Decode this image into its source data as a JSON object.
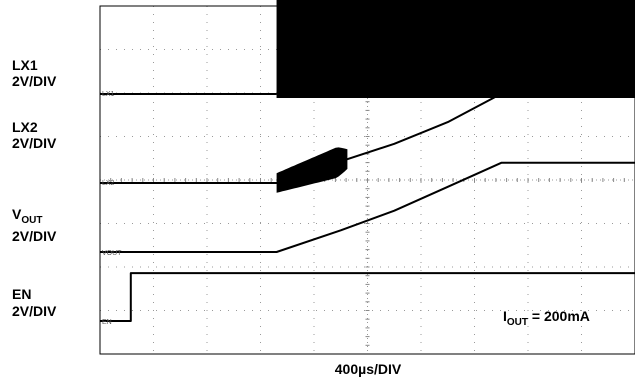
{
  "chart_data": {
    "type": "line",
    "title": "",
    "xlabel": "400µs/DIV",
    "x_unit": "µs",
    "x_per_div": 400,
    "x_divisions": 10,
    "y_divisions": 8,
    "xlim": [
      0,
      4000
    ],
    "grid": true,
    "annotation": {
      "main": "I",
      "sub": "OUT",
      "rest": " = 200mA"
    },
    "series": [
      {
        "name": "LX1",
        "scale": "2V/DIV",
        "marker": "LX1",
        "style": "switching_burst",
        "x": [
          0,
          1320,
          1320,
          4000
        ],
        "y_div": [
          0,
          0,
          3.1,
          3.1
        ]
      },
      {
        "name": "LX2",
        "scale": "2V/DIV",
        "marker": "LX2",
        "style": "line_with_burst",
        "x": [
          0,
          1320,
          1800,
          2200,
          2600,
          3000,
          3300,
          4000
        ],
        "y_div": [
          0,
          0,
          0.5,
          0.9,
          1.4,
          2.05,
          2.05,
          2.05
        ],
        "burst": {
          "x_start": 1320,
          "x_end": 1850,
          "amplitude_div": [
            0.45,
            0.75
          ]
        }
      },
      {
        "name_main": "V",
        "name_sub": "OUT",
        "scale": "2V/DIV",
        "marker": "VOUT",
        "x": [
          0,
          1320,
          1800,
          2200,
          2600,
          3000,
          3300,
          4000
        ],
        "y_div": [
          0,
          0,
          0.5,
          0.95,
          1.5,
          2.05,
          2.05,
          2.05
        ]
      },
      {
        "name": "EN",
        "scale": "2V/DIV",
        "marker": "EN",
        "x": [
          0,
          230,
          230,
          4000
        ],
        "y_div": [
          0,
          0,
          1.1,
          1.1
        ]
      }
    ]
  }
}
